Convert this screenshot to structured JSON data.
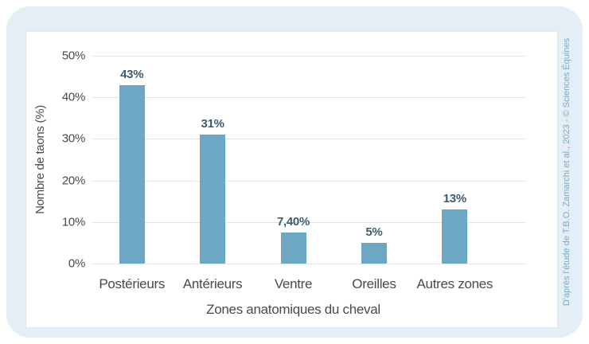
{
  "chart_data": {
    "type": "bar",
    "categories": [
      "Postérieurs",
      "Antérieurs",
      "Ventre",
      "Oreilles",
      "Autres zones"
    ],
    "values": [
      43,
      31,
      7.4,
      5,
      13
    ],
    "value_labels": [
      "43%",
      "31%",
      "7,40%",
      "5%",
      "13%"
    ],
    "title": "",
    "xlabel": "Zones anatomiques du cheval",
    "ylabel": "Nombre de taons (%)",
    "ylim": [
      0,
      50
    ],
    "yticks": [
      0,
      10,
      20,
      30,
      40,
      50
    ],
    "ytick_labels": [
      "0%",
      "10%",
      "20%",
      "30%",
      "40%",
      "50%"
    ],
    "grid": true,
    "legend": false,
    "bar_color": "#6CA8C4"
  },
  "credit": "D'après l'étude de T.B.O. Zamarchi et al., 2023 - © Sciences Équines",
  "colors": {
    "page_bg": "#FFFFFF",
    "panel_bg": "#E4EEF5",
    "card_bg": "#FFFFFF",
    "card_border": "#E0E8EC",
    "bar": "#6CA8C4",
    "value_label": "#3E5B6E",
    "axis_text": "#4A4A4A",
    "gridline": "#E3E3E3",
    "credit_text": "#7BAAC3"
  }
}
